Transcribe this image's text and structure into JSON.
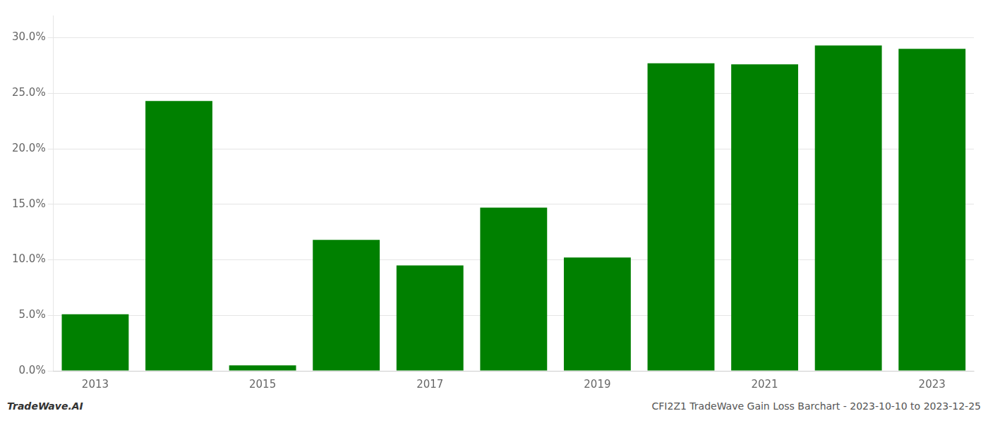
{
  "chart_data": {
    "type": "bar",
    "categories": [
      "2013",
      null,
      "2015",
      null,
      "2017",
      null,
      "2019",
      null,
      "2021",
      null,
      "2023"
    ],
    "values": [
      0.051,
      0.243,
      0.005,
      0.118,
      0.095,
      0.147,
      0.102,
      0.277,
      0.276,
      0.293,
      0.29
    ],
    "color": "#008000",
    "ylim": [
      0,
      0.32
    ],
    "yticks": [
      {
        "value": 0.0,
        "label": "0.0%"
      },
      {
        "value": 0.05,
        "label": "5.0%"
      },
      {
        "value": 0.1,
        "label": "10.0%"
      },
      {
        "value": 0.15,
        "label": "15.0%"
      },
      {
        "value": 0.2,
        "label": "20.0%"
      },
      {
        "value": 0.25,
        "label": "25.0%"
      },
      {
        "value": 0.3,
        "label": "30.0%"
      }
    ],
    "grid": true,
    "annotations": [
      "TradeWave.AI",
      "CFI2Z1 TradeWave Gain Loss Barchart - 2023-10-10 to 2023-12-25"
    ]
  }
}
